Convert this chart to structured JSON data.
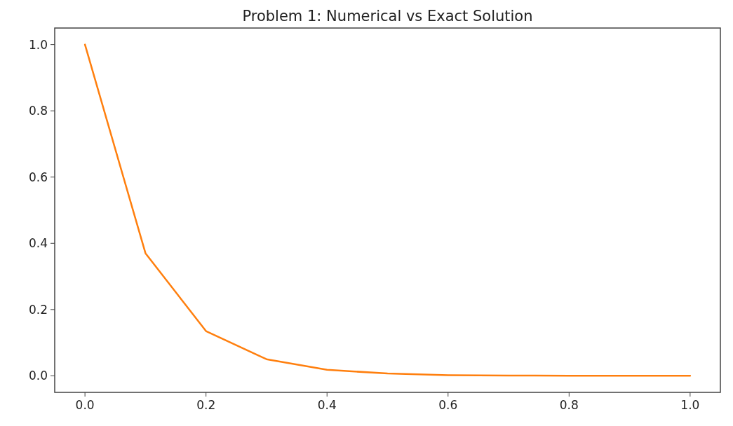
{
  "chart_data": {
    "type": "line",
    "title": "Problem 1: Numerical vs Exact Solution",
    "x": [
      0,
      0.1,
      0.2,
      0.3,
      0.4,
      0.5,
      0.6,
      0.7,
      0.8,
      0.9,
      1.0
    ],
    "series": [
      {
        "color": "#ff7f0e",
        "values": [
          1.0,
          0.37,
          0.135,
          0.05,
          0.018,
          0.007,
          0.002,
          0.001,
          0,
          0,
          0
        ]
      }
    ],
    "xlim": [
      -0.05,
      1.05
    ],
    "xticks": [
      {
        "value": 0,
        "label": "0.0"
      },
      {
        "value": 0.2,
        "label": "0.2"
      },
      {
        "value": 0.4,
        "label": "0.4"
      },
      {
        "value": 0.6,
        "label": "0.6"
      },
      {
        "value": 0.8,
        "label": "0.8"
      },
      {
        "value": 1.0,
        "label": "1.0"
      }
    ],
    "ylim": [
      -0.05,
      1.05
    ],
    "yticks": [
      {
        "value": 0,
        "label": "0.0"
      },
      {
        "value": 0.2,
        "label": "0.2"
      },
      {
        "value": 0.4,
        "label": "0.4"
      },
      {
        "value": 0.6,
        "label": "0.6"
      },
      {
        "value": 0.8,
        "label": "0.8"
      },
      {
        "value": 1.0,
        "label": "1.0"
      }
    ],
    "grid": false,
    "marker": "none",
    "line_style": "solid"
  }
}
